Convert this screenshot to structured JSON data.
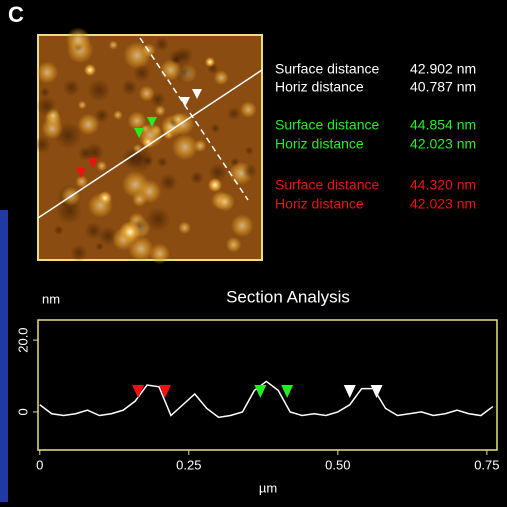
{
  "panel_label": "C",
  "measurements": [
    {
      "color": "#ffffff",
      "rows": [
        {
          "label": "Surface distance",
          "value": "42.902 nm"
        },
        {
          "label": "Horiz distance",
          "value": "40.787 nm"
        }
      ]
    },
    {
      "color": "#22ee22",
      "rows": [
        {
          "label": "Surface distance",
          "value": "44.854 nm"
        },
        {
          "label": "Horiz distance",
          "value": "42.023 nm"
        }
      ]
    },
    {
      "color": "#ee1111",
      "rows": [
        {
          "label": "Surface distance",
          "value": "44.320 nm"
        },
        {
          "label": "Horiz distance",
          "value": "42.023 nm"
        }
      ]
    }
  ],
  "chart_data": {
    "type": "line",
    "title": "Section Analysis",
    "y_label": "nm",
    "x_label": "µm",
    "x": [
      0,
      0.02,
      0.04,
      0.06,
      0.08,
      0.1,
      0.12,
      0.14,
      0.16,
      0.18,
      0.2,
      0.22,
      0.24,
      0.26,
      0.28,
      0.3,
      0.32,
      0.34,
      0.36,
      0.38,
      0.4,
      0.42,
      0.44,
      0.46,
      0.48,
      0.5,
      0.52,
      0.54,
      0.56,
      0.58,
      0.6,
      0.62,
      0.64,
      0.66,
      0.68,
      0.7,
      0.72,
      0.74,
      0.76
    ],
    "series": [
      {
        "color": "#ffffff",
        "values": [
          2,
          -0.5,
          -1,
          -0.5,
          0.5,
          -1,
          -0.5,
          0.5,
          3,
          7.5,
          7,
          -1,
          2,
          5,
          1,
          -1.5,
          -1,
          0,
          6,
          8.5,
          6,
          0,
          -1,
          -0.5,
          -1,
          0,
          2,
          6.5,
          6.5,
          1,
          -1,
          -0.5,
          0,
          -1,
          -0.5,
          0.5,
          -0.5,
          -1,
          1.5
        ]
      }
    ],
    "cursors": [
      {
        "color": "#ee1111",
        "x": [
          0.165,
          0.21
        ]
      },
      {
        "color": "#22ee22",
        "x": [
          0.37,
          0.415
        ]
      },
      {
        "color": "#ffffff",
        "x": [
          0.52,
          0.565
        ]
      }
    ],
    "xlim": [
      -0.003,
      0.767
    ],
    "ylim": [
      -10.6,
      25.6
    ],
    "xticks": [
      0,
      0.25,
      {
        "value": 0.5,
        "label": "0.50"
      },
      0.75
    ],
    "yticks": [
      0,
      {
        "value": 20,
        "label": "20.0"
      }
    ],
    "frame_color": "#e8e080"
  }
}
